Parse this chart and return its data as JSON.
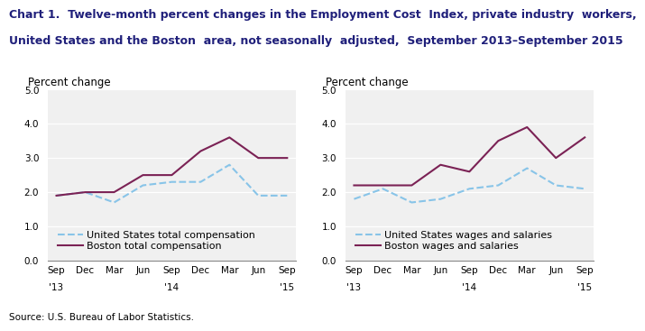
{
  "title_line1": "Chart 1.  Twelve-month percent changes in the Employment Cost  Index, private industry  workers,",
  "title_line2": "United States and the Boston  area, not seasonally  adjusted,  September 2013–September 2015",
  "x_labels_top": [
    "Sep",
    "Dec",
    "Mar",
    "Jun",
    "Sep",
    "Dec",
    "Mar",
    "Jun",
    "Sep"
  ],
  "x_labels_bot": [
    "'13",
    "",
    "",
    "",
    "'14",
    "",
    "",
    "",
    "'15"
  ],
  "ylabel": "Percent change",
  "source": "Source: U.S. Bureau of Labor Statistics.",
  "left_chart": {
    "us_label": "United States total compensation",
    "boston_label": "Boston total compensation",
    "us_values": [
      1.9,
      2.0,
      1.7,
      2.2,
      2.3,
      2.3,
      2.8,
      1.9,
      1.9
    ],
    "boston_values": [
      1.9,
      2.0,
      2.0,
      2.5,
      2.5,
      3.2,
      3.6,
      3.0,
      3.0
    ]
  },
  "right_chart": {
    "us_label": "United States wages and salaries",
    "boston_label": "Boston wages and salaries",
    "us_values": [
      1.8,
      2.1,
      1.7,
      1.8,
      2.1,
      2.2,
      2.7,
      2.2,
      2.1
    ],
    "boston_values": [
      2.2,
      2.2,
      2.2,
      2.8,
      2.6,
      3.5,
      3.9,
      3.0,
      3.6
    ]
  },
  "us_color": "#88c4e8",
  "boston_color": "#7b2255",
  "ylim": [
    0.0,
    5.0
  ],
  "yticks": [
    0.0,
    1.0,
    2.0,
    3.0,
    4.0,
    5.0
  ],
  "plot_bg_color": "#f0f0f0",
  "grid_color": "#ffffff",
  "title_fontsize": 9.0,
  "axis_label_fontsize": 8.5,
  "tick_fontsize": 7.5,
  "legend_fontsize": 8.0,
  "source_fontsize": 7.5,
  "title_color": "#1f1f7a"
}
